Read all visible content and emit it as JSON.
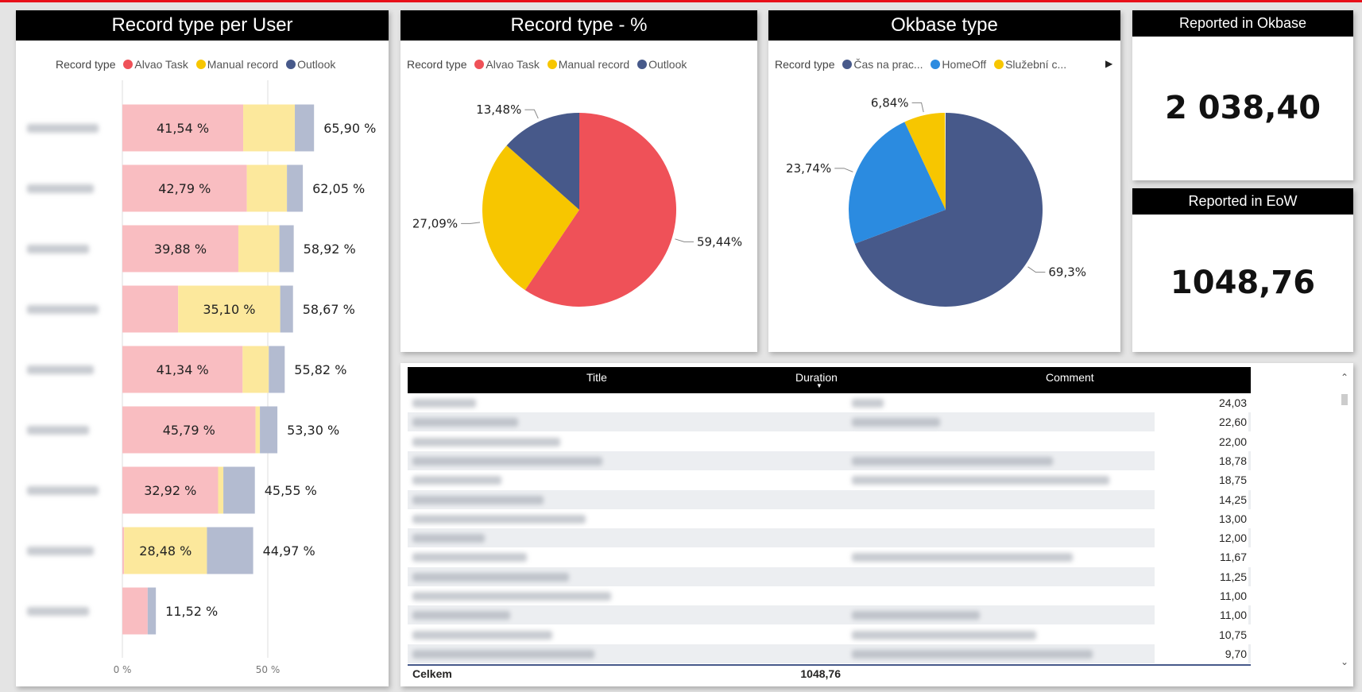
{
  "colors": {
    "alvao": "#ef5158",
    "manual": "#f7c600",
    "outlook": "#47598a",
    "homeoff": "#2b8be0",
    "alvao_light": "#f9bdc1",
    "manual_light": "#fce89c",
    "outlook_light": "#b3bbd0"
  },
  "bar_chart": {
    "title": "Record type per User",
    "legend_title": "Record type",
    "legend": [
      "Alvao Task",
      "Manual record",
      "Outlook"
    ],
    "ticks": [
      "0 %",
      "50 %"
    ],
    "rows": [
      {
        "alvao": 41.54,
        "manual": 17.76,
        "outlook": 6.6,
        "inner_label": "41,54 %",
        "total_label": "65,90 %"
      },
      {
        "alvao": 42.79,
        "manual": 13.8,
        "outlook": 5.46,
        "inner_label": "42,79 %",
        "total_label": "62,05 %"
      },
      {
        "alvao": 39.88,
        "manual": 14.1,
        "outlook": 4.94,
        "inner_label": "39,88 %",
        "total_label": "58,92 %"
      },
      {
        "alvao": 19.17,
        "manual": 35.1,
        "outlook": 4.4,
        "inner_label": "35,10 %",
        "total_label": "58,67 %"
      },
      {
        "alvao": 41.34,
        "manual": 9.0,
        "outlook": 5.48,
        "inner_label": "41,34 %",
        "total_label": "55,82 %"
      },
      {
        "alvao": 45.79,
        "manual": 1.5,
        "outlook": 6.01,
        "inner_label": "45,79 %",
        "total_label": "53,30 %"
      },
      {
        "alvao": 32.92,
        "manual": 1.8,
        "outlook": 10.83,
        "inner_label": "32,92 %",
        "total_label": "45,55 %"
      },
      {
        "alvao": 0.6,
        "manual": 28.48,
        "outlook": 15.89,
        "inner_label": "28,48 %",
        "total_label": "44,97 %"
      },
      {
        "alvao": 8.7,
        "manual": 0,
        "outlook": 2.82,
        "inner_label": "",
        "total_label": "11,52 %"
      }
    ]
  },
  "pie1": {
    "title": "Record type - %",
    "legend_title": "Record type",
    "legend": [
      "Alvao Task",
      "Manual record",
      "Outlook"
    ],
    "slices": [
      {
        "name": "Alvao Task",
        "value": 59.44,
        "label": "59,44%"
      },
      {
        "name": "Manual record",
        "value": 27.09,
        "label": "27,09%"
      },
      {
        "name": "Outlook",
        "value": 13.48,
        "label": "13,48%"
      }
    ]
  },
  "pie2": {
    "title": "Okbase type",
    "legend_title": "Record type",
    "legend": [
      "Čas na prac...",
      "HomeOff",
      "Služební c..."
    ],
    "slices": [
      {
        "name": "Čas na prac...",
        "value": 69.3,
        "label": "69,3%"
      },
      {
        "name": "HomeOff",
        "value": 23.74,
        "label": "23,74%"
      },
      {
        "name": "Služební c...",
        "value": 6.84,
        "label": "6,84%"
      }
    ]
  },
  "cards": [
    {
      "title": "Reported in Okbase",
      "value": "2 038,40"
    },
    {
      "title": "Reported in EoW",
      "value": "1048,76"
    }
  ],
  "table": {
    "headers": [
      "Title",
      "Duration",
      "Comment"
    ],
    "durations": [
      "24,03",
      "22,60",
      "22,00",
      "18,78",
      "18,75",
      "14,25",
      "13,00",
      "12,00",
      "11,67",
      "11,25",
      "11,00",
      "11,00",
      "10,75",
      "9,70"
    ],
    "total_label": "Celkem",
    "total_value": "1048,76"
  }
}
